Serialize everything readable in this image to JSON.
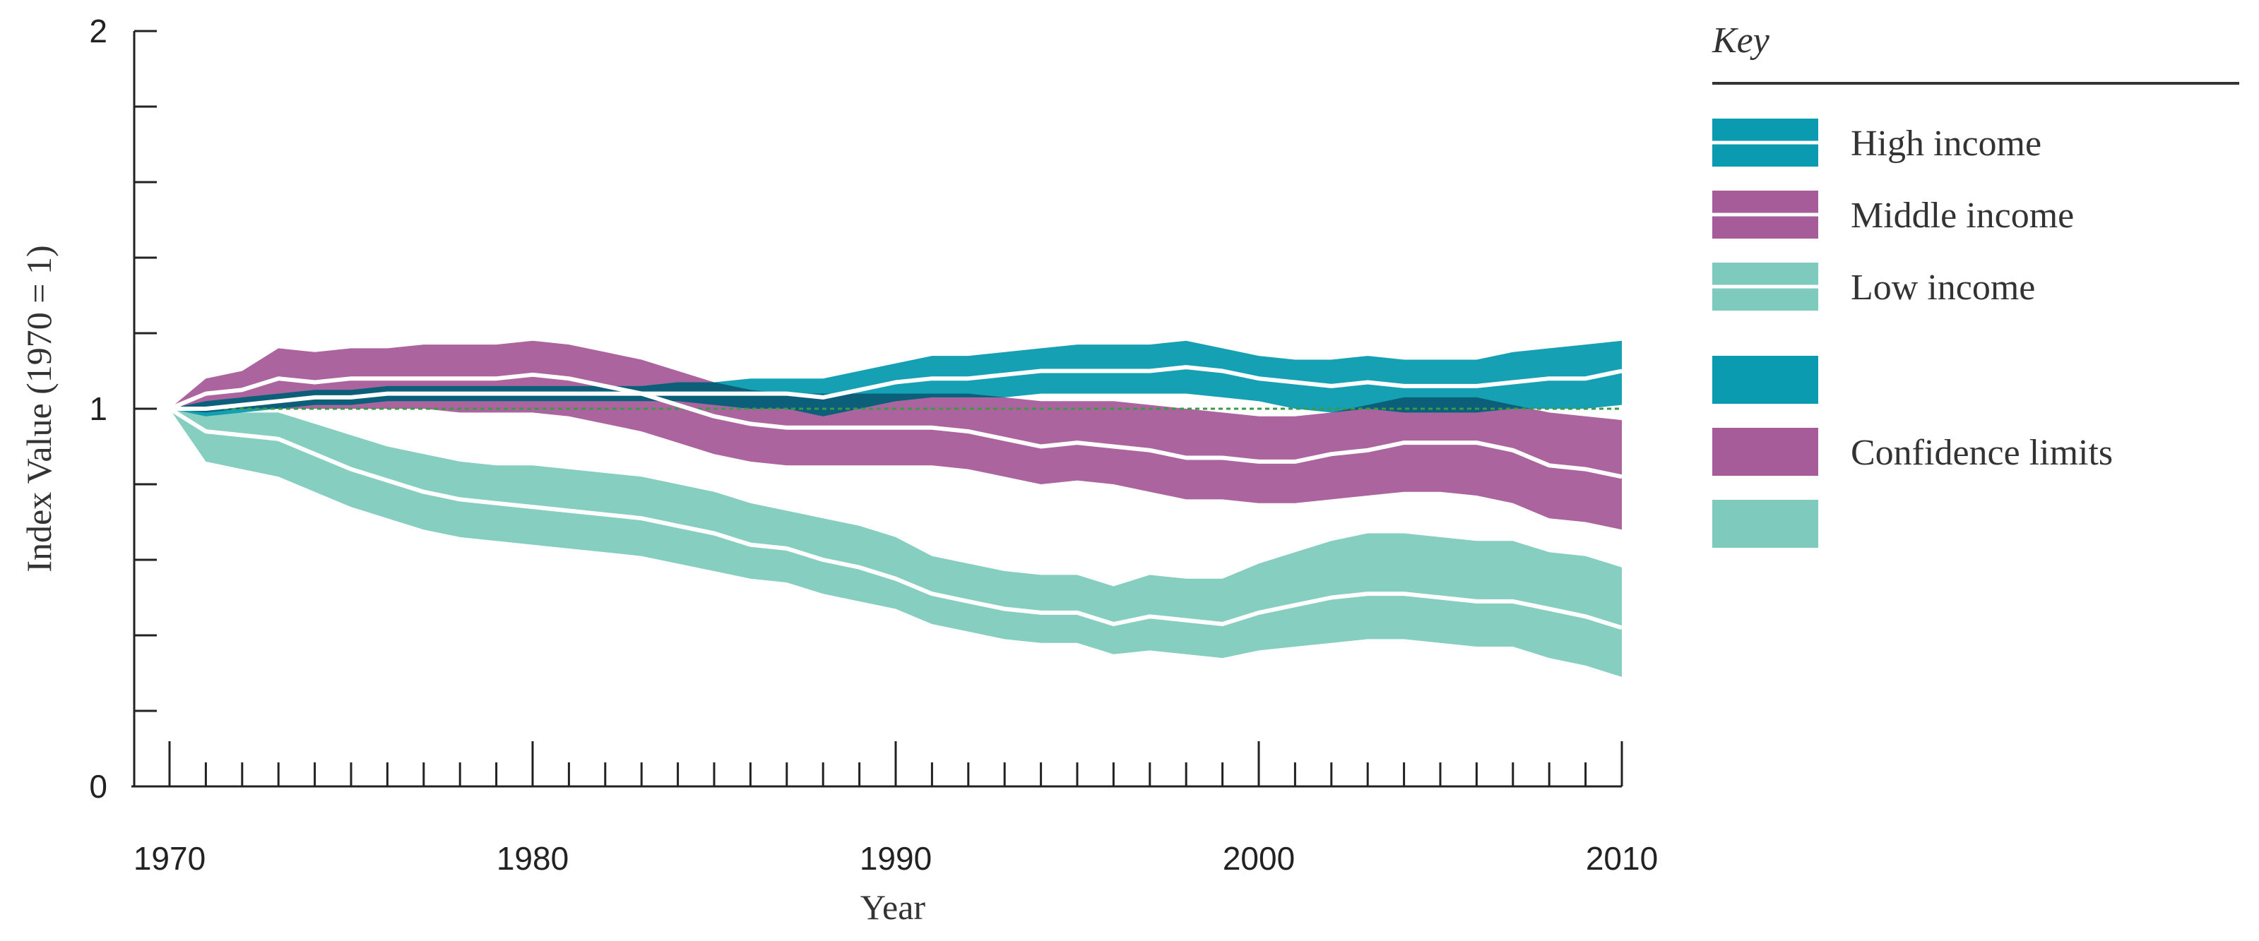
{
  "chart_data": {
    "type": "area",
    "title": "",
    "xlabel": "Year",
    "ylabel": "Index Value (1970 = 1)",
    "xlim": [
      1970,
      2010
    ],
    "ylim": [
      0,
      2
    ],
    "x_tick_labels": [
      "1970",
      "1980",
      "1990",
      "2000",
      "2010"
    ],
    "y_tick_labels": [
      "0",
      "1",
      "2"
    ],
    "reference_line": 1,
    "legend": {
      "title": "Key",
      "entries": [
        "High income",
        "Middle income",
        "Low income",
        "Confidence limits"
      ]
    },
    "x": [
      1970,
      1971,
      1972,
      1973,
      1974,
      1975,
      1976,
      1977,
      1978,
      1979,
      1980,
      1981,
      1982,
      1983,
      1984,
      1985,
      1986,
      1987,
      1988,
      1989,
      1990,
      1991,
      1992,
      1993,
      1994,
      1995,
      1996,
      1997,
      1998,
      1999,
      2000,
      2001,
      2002,
      2003,
      2004,
      2005,
      2006,
      2007,
      2008,
      2009,
      2010
    ],
    "series": [
      {
        "name": "High income",
        "color": "#0a9bb0",
        "values": [
          1.0,
          1.0,
          1.01,
          1.02,
          1.03,
          1.03,
          1.04,
          1.04,
          1.04,
          1.04,
          1.04,
          1.04,
          1.04,
          1.04,
          1.04,
          1.04,
          1.04,
          1.04,
          1.03,
          1.05,
          1.07,
          1.08,
          1.08,
          1.09,
          1.1,
          1.1,
          1.1,
          1.1,
          1.11,
          1.1,
          1.08,
          1.07,
          1.06,
          1.07,
          1.06,
          1.06,
          1.06,
          1.07,
          1.08,
          1.08,
          1.1
        ],
        "upper": [
          1.0,
          1.02,
          1.03,
          1.04,
          1.05,
          1.05,
          1.06,
          1.06,
          1.06,
          1.06,
          1.06,
          1.06,
          1.06,
          1.06,
          1.07,
          1.07,
          1.08,
          1.08,
          1.08,
          1.1,
          1.12,
          1.14,
          1.14,
          1.15,
          1.16,
          1.17,
          1.17,
          1.17,
          1.18,
          1.16,
          1.14,
          1.13,
          1.13,
          1.14,
          1.13,
          1.13,
          1.13,
          1.15,
          1.16,
          1.17,
          1.18
        ],
        "lower": [
          1.0,
          0.98,
          0.99,
          1.0,
          1.01,
          1.01,
          1.02,
          1.02,
          1.02,
          1.02,
          1.02,
          1.02,
          1.02,
          1.02,
          1.02,
          1.01,
          1.0,
          1.0,
          0.98,
          1.0,
          1.02,
          1.03,
          1.03,
          1.03,
          1.04,
          1.04,
          1.04,
          1.04,
          1.04,
          1.03,
          1.02,
          1.0,
          0.99,
          1.0,
          0.99,
          0.99,
          0.99,
          1.0,
          1.0,
          1.0,
          1.01
        ]
      },
      {
        "name": "Middle income",
        "color": "#a65c98",
        "values": [
          1.0,
          1.04,
          1.05,
          1.08,
          1.07,
          1.08,
          1.08,
          1.08,
          1.08,
          1.08,
          1.09,
          1.08,
          1.06,
          1.04,
          1.01,
          0.98,
          0.96,
          0.95,
          0.95,
          0.95,
          0.95,
          0.95,
          0.94,
          0.92,
          0.9,
          0.91,
          0.9,
          0.89,
          0.87,
          0.87,
          0.86,
          0.86,
          0.88,
          0.89,
          0.91,
          0.91,
          0.91,
          0.89,
          0.85,
          0.84,
          0.82
        ],
        "upper": [
          1.0,
          1.08,
          1.1,
          1.16,
          1.15,
          1.16,
          1.16,
          1.17,
          1.17,
          1.17,
          1.18,
          1.17,
          1.15,
          1.13,
          1.1,
          1.07,
          1.05,
          1.04,
          1.04,
          1.04,
          1.04,
          1.04,
          1.04,
          1.03,
          1.02,
          1.02,
          1.02,
          1.01,
          1.0,
          0.99,
          0.98,
          0.98,
          0.99,
          1.01,
          1.03,
          1.03,
          1.03,
          1.01,
          0.99,
          0.98,
          0.97
        ],
        "lower": [
          1.0,
          0.99,
          1.0,
          1.0,
          1.0,
          1.0,
          1.0,
          1.0,
          0.99,
          0.99,
          0.99,
          0.98,
          0.96,
          0.94,
          0.91,
          0.88,
          0.86,
          0.85,
          0.85,
          0.85,
          0.85,
          0.85,
          0.84,
          0.82,
          0.8,
          0.81,
          0.8,
          0.78,
          0.76,
          0.76,
          0.75,
          0.75,
          0.76,
          0.77,
          0.78,
          0.78,
          0.77,
          0.75,
          0.71,
          0.7,
          0.68
        ]
      },
      {
        "name": "Low income",
        "color": "#7ecbbd",
        "values": [
          1.0,
          0.94,
          0.93,
          0.92,
          0.88,
          0.84,
          0.81,
          0.78,
          0.76,
          0.75,
          0.74,
          0.73,
          0.72,
          0.71,
          0.69,
          0.67,
          0.64,
          0.63,
          0.6,
          0.58,
          0.55,
          0.51,
          0.49,
          0.47,
          0.46,
          0.46,
          0.43,
          0.45,
          0.44,
          0.43,
          0.46,
          0.48,
          0.5,
          0.51,
          0.51,
          0.5,
          0.49,
          0.49,
          0.47,
          0.45,
          0.42
        ],
        "upper": [
          1.0,
          0.99,
          0.99,
          0.99,
          0.96,
          0.93,
          0.9,
          0.88,
          0.86,
          0.85,
          0.85,
          0.84,
          0.83,
          0.82,
          0.8,
          0.78,
          0.75,
          0.73,
          0.71,
          0.69,
          0.66,
          0.61,
          0.59,
          0.57,
          0.56,
          0.56,
          0.53,
          0.56,
          0.55,
          0.55,
          0.59,
          0.62,
          0.65,
          0.67,
          0.67,
          0.66,
          0.65,
          0.65,
          0.62,
          0.61,
          0.58
        ],
        "lower": [
          1.0,
          0.86,
          0.84,
          0.82,
          0.78,
          0.74,
          0.71,
          0.68,
          0.66,
          0.65,
          0.64,
          0.63,
          0.62,
          0.61,
          0.59,
          0.57,
          0.55,
          0.54,
          0.51,
          0.49,
          0.47,
          0.43,
          0.41,
          0.39,
          0.38,
          0.38,
          0.35,
          0.36,
          0.35,
          0.34,
          0.36,
          0.37,
          0.38,
          0.39,
          0.39,
          0.38,
          0.37,
          0.37,
          0.34,
          0.32,
          0.29
        ]
      }
    ]
  },
  "colors": {
    "high_band": "#0a9bb0",
    "middle_band": "#a65c98",
    "low_band": "#7ecbbd",
    "overlap_high_middle": "#0b5f78",
    "median_line": "#ffffff",
    "reference_line": "#3b9a4a",
    "axis": "#222222"
  }
}
